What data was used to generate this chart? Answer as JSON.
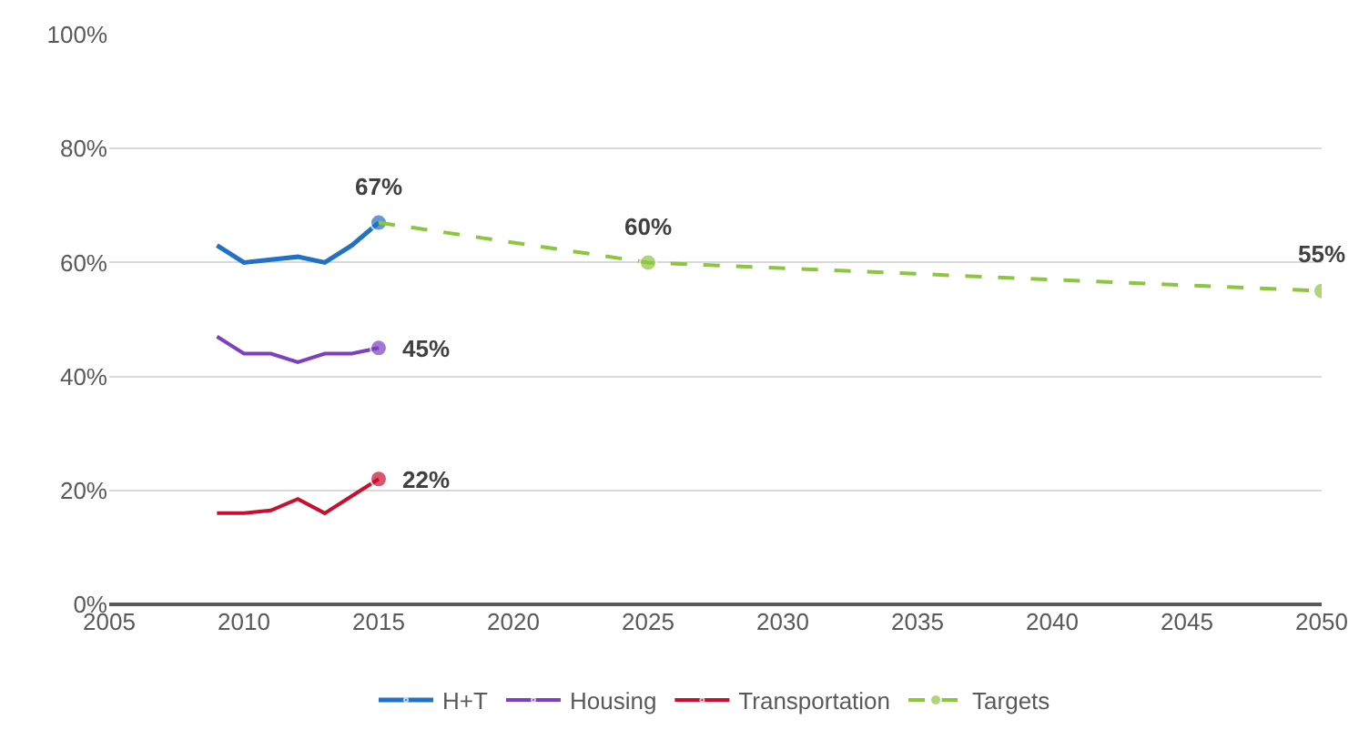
{
  "chart_data": {
    "type": "line",
    "xlim": [
      2005,
      2050
    ],
    "xticks": [
      2005,
      2010,
      2015,
      2020,
      2025,
      2030,
      2035,
      2040,
      2045,
      2050
    ],
    "ylim": [
      0,
      100
    ],
    "yticks": [
      {
        "value": 0,
        "label": "0%"
      },
      {
        "value": 20,
        "label": "20%"
      },
      {
        "value": 40,
        "label": "40%"
      },
      {
        "value": 60,
        "label": "60%"
      },
      {
        "value": 80,
        "label": "80%"
      },
      {
        "value": 100,
        "label": "100%"
      }
    ],
    "grid": "y",
    "legend": "bottom",
    "series": [
      {
        "name": "H+T",
        "color": "#1f72c4",
        "line_style": "solid",
        "x": [
          2009,
          2010,
          2011,
          2012,
          2013,
          2014,
          2015
        ],
        "values": [
          63,
          60,
          60.5,
          61,
          60,
          63,
          67
        ],
        "value_labels": [
          null,
          null,
          null,
          null,
          null,
          null,
          "67%"
        ]
      },
      {
        "name": "Housing",
        "color": "#7b3fbf",
        "line_style": "solid",
        "x": [
          2009,
          2010,
          2011,
          2012,
          2013,
          2014,
          2015
        ],
        "values": [
          47,
          44,
          44,
          42.5,
          44,
          44,
          45
        ],
        "value_labels": [
          null,
          null,
          null,
          null,
          null,
          null,
          "45%"
        ]
      },
      {
        "name": "Transportation",
        "color": "#c8102e",
        "line_style": "solid",
        "x": [
          2009,
          2010,
          2011,
          2012,
          2013,
          2014,
          2015
        ],
        "values": [
          16,
          16,
          16.5,
          18.5,
          16,
          19,
          22
        ],
        "value_labels": [
          null,
          null,
          null,
          null,
          null,
          null,
          "22%"
        ]
      },
      {
        "name": "Targets",
        "color": "#8cc63f",
        "line_style": "dashed",
        "x": [
          2015,
          2025,
          2050
        ],
        "values": [
          67,
          60,
          55
        ],
        "value_labels": [
          null,
          "60%",
          "55%"
        ]
      }
    ]
  }
}
